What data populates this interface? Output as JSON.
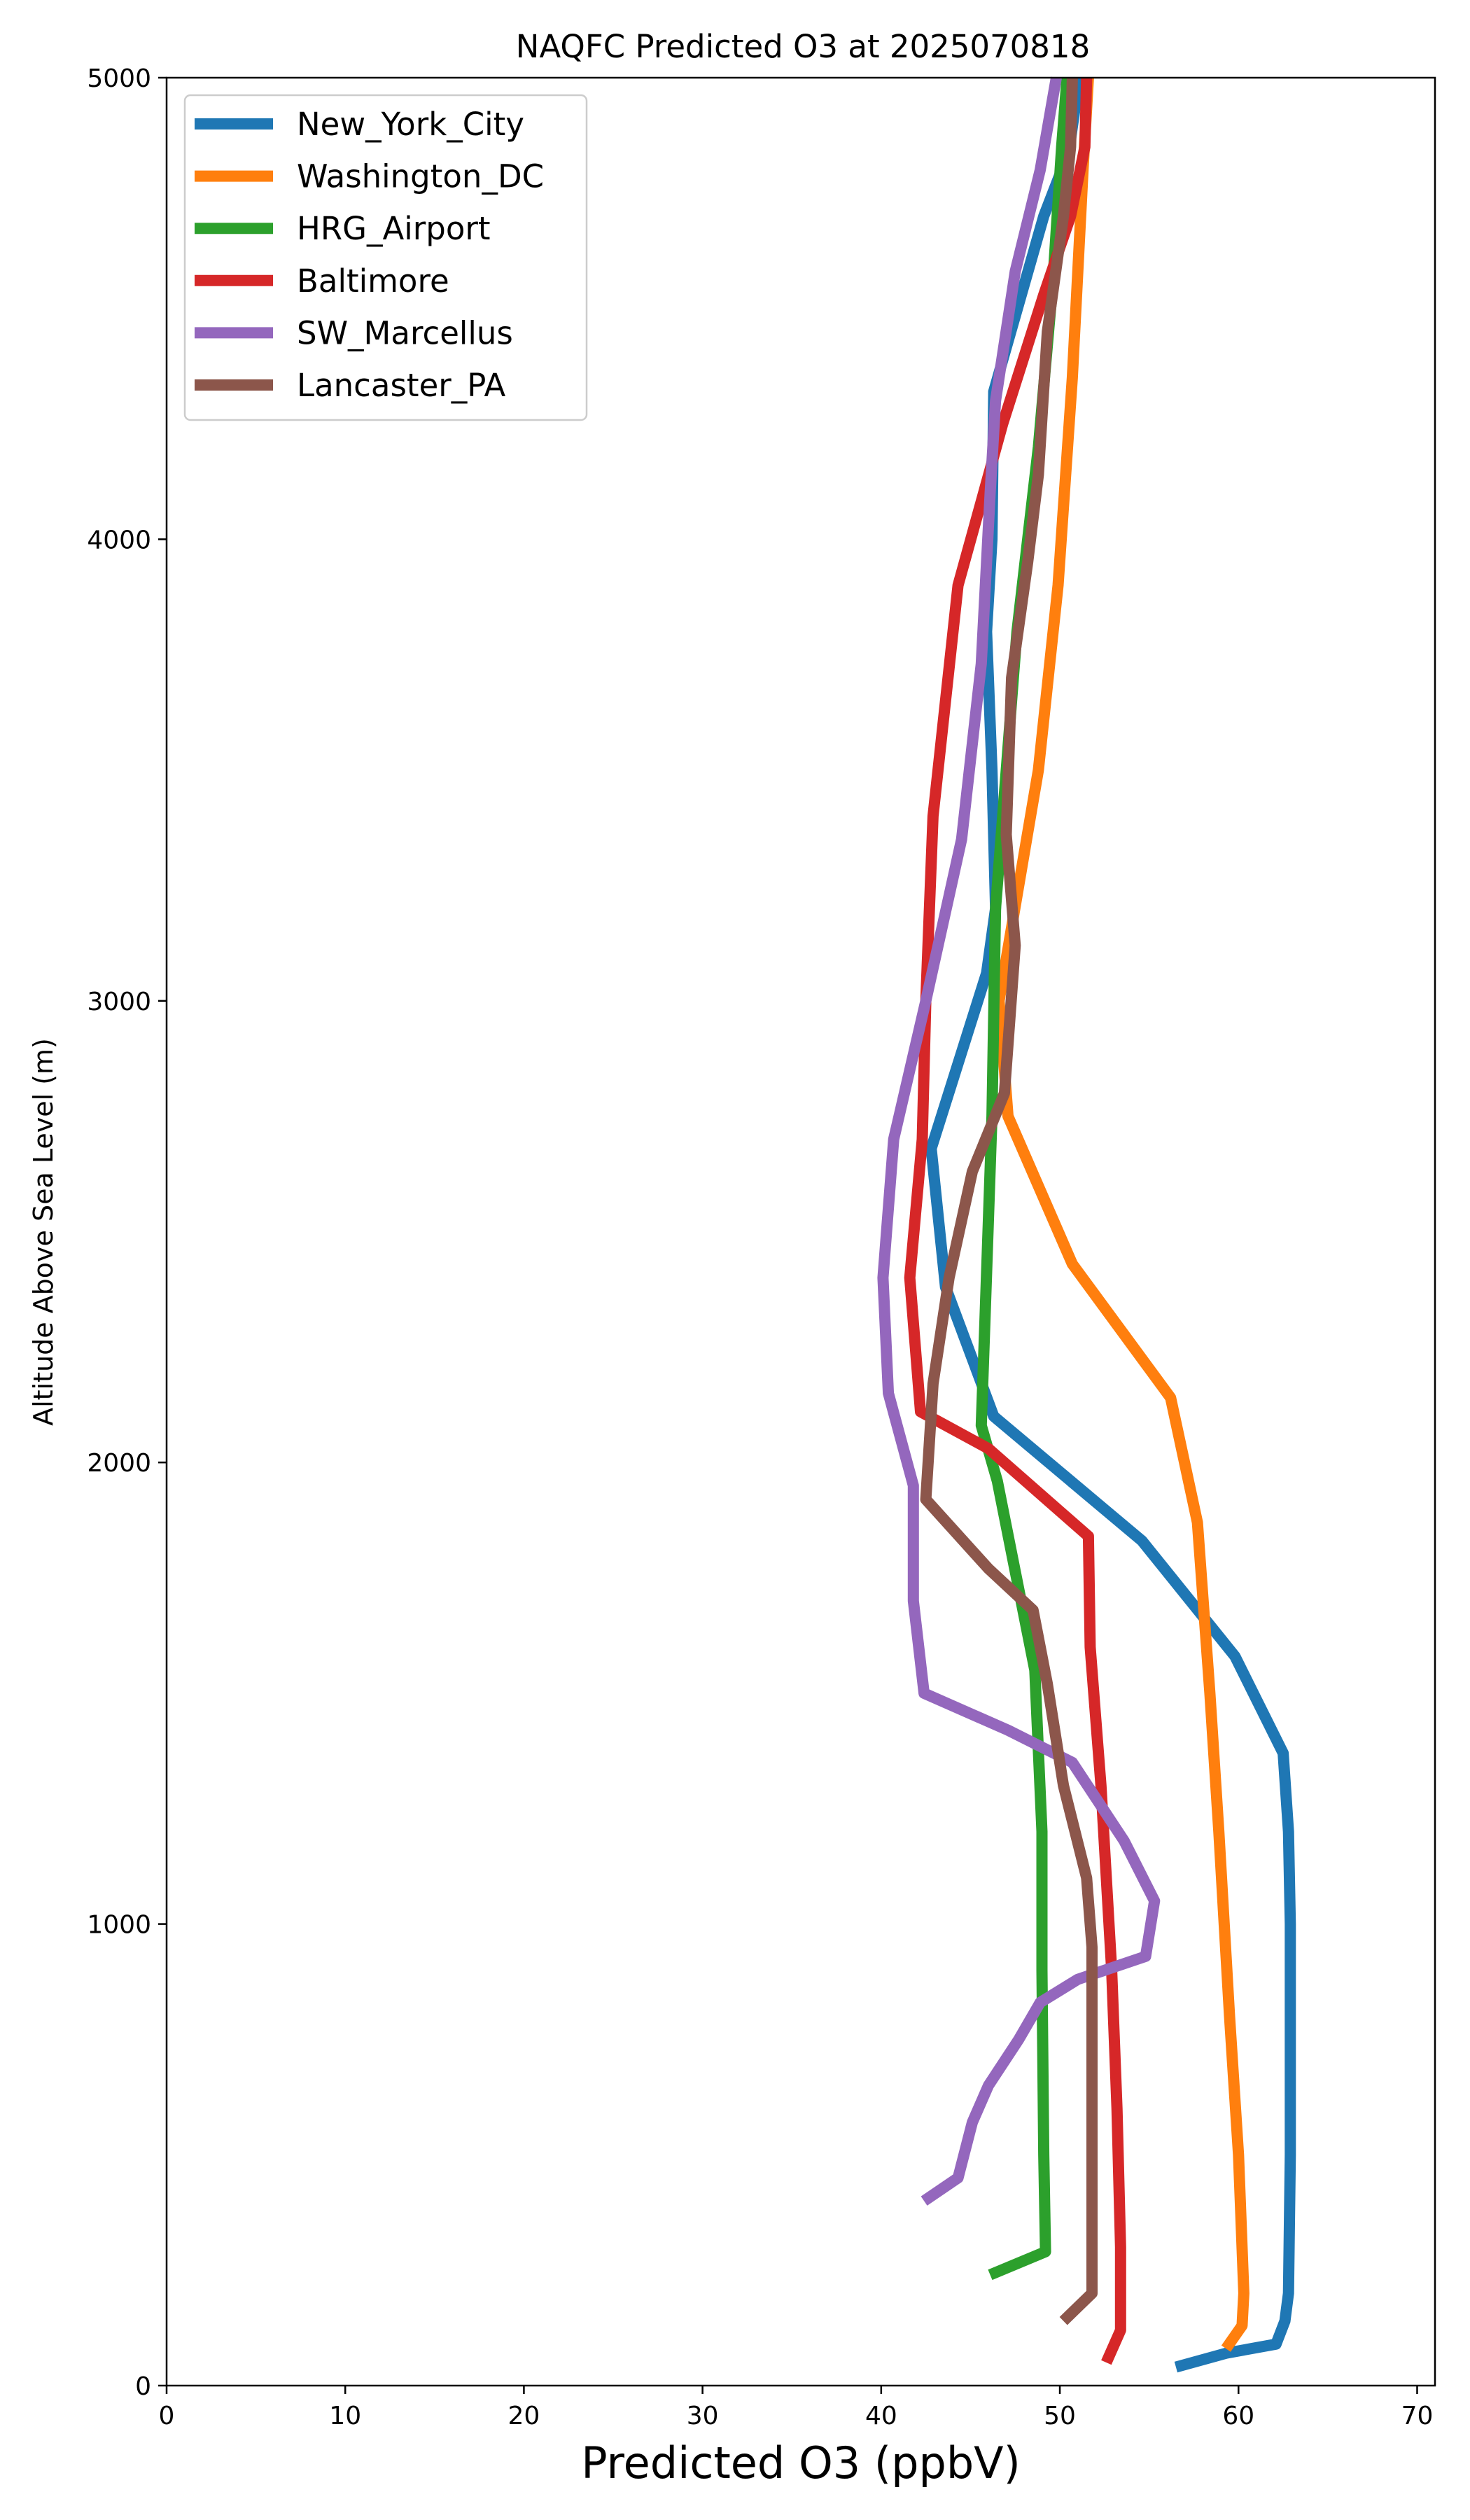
{
  "chart_data": {
    "type": "line",
    "title": "NAQFC Predicted O3 at 2025070818",
    "xlabel": "Predicted O3 (ppbV)",
    "ylabel": "Altitude Above Sea Level (m)",
    "xlim": [
      0,
      71
    ],
    "ylim": [
      0,
      5000
    ],
    "xticks": [
      0,
      10,
      20,
      30,
      40,
      50,
      60,
      70
    ],
    "yticks": [
      0,
      1000,
      2000,
      3000,
      4000,
      5000
    ],
    "xtick_labels": [
      "0",
      "10",
      "20",
      "30",
      "40",
      "50",
      "60",
      "70"
    ],
    "ytick_labels": [
      "0",
      "1000",
      "2000",
      "3000",
      "4000",
      "5000"
    ],
    "grid": false,
    "legend_position": "top-left",
    "series": [
      {
        "name": "New_York_City",
        "color": "#1f77b4",
        "points": [
          [
            56.5,
            40
          ],
          [
            59.3,
            70
          ],
          [
            62.1,
            90
          ],
          [
            62.6,
            140
          ],
          [
            62.8,
            200
          ],
          [
            62.9,
            500
          ],
          [
            62.9,
            1000
          ],
          [
            62.8,
            1200
          ],
          [
            62.5,
            1370
          ],
          [
            59.8,
            1580
          ],
          [
            54.6,
            1830
          ],
          [
            46.3,
            2100
          ],
          [
            43.6,
            2380
          ],
          [
            42.8,
            2680
          ],
          [
            45.9,
            3060
          ],
          [
            46.4,
            3200
          ],
          [
            46.2,
            3500
          ],
          [
            45.9,
            3800
          ],
          [
            46.2,
            4000
          ],
          [
            46.3,
            4320
          ],
          [
            49.1,
            4700
          ],
          [
            50.5,
            4840
          ],
          [
            51.1,
            5000
          ]
        ]
      },
      {
        "name": "Washington_DC",
        "color": "#ff7f0e",
        "points": [
          [
            59.3,
            80
          ],
          [
            60.2,
            130
          ],
          [
            60.3,
            200
          ],
          [
            60.0,
            500
          ],
          [
            59.5,
            800
          ],
          [
            58.9,
            1200
          ],
          [
            58.4,
            1500
          ],
          [
            57.7,
            1870
          ],
          [
            56.2,
            2140
          ],
          [
            50.7,
            2430
          ],
          [
            47.1,
            2750
          ],
          [
            46.6,
            3000
          ],
          [
            48.8,
            3500
          ],
          [
            49.9,
            3900
          ],
          [
            50.7,
            4350
          ],
          [
            51.3,
            4800
          ],
          [
            51.6,
            5000
          ]
        ]
      },
      {
        "name": "HRG_Airport",
        "color": "#2ca02c",
        "points": [
          [
            46.1,
            240
          ],
          [
            49.2,
            290
          ],
          [
            49.1,
            500
          ],
          [
            49.0,
            900
          ],
          [
            49.0,
            1200
          ],
          [
            48.6,
            1550
          ],
          [
            46.5,
            1960
          ],
          [
            45.6,
            2080
          ],
          [
            45.8,
            2300
          ],
          [
            46.2,
            2750
          ],
          [
            46.4,
            3200
          ],
          [
            47.6,
            3800
          ],
          [
            48.8,
            4200
          ],
          [
            49.6,
            4550
          ],
          [
            50.1,
            4850
          ],
          [
            50.4,
            5000
          ]
        ]
      },
      {
        "name": "Baltimore",
        "color": "#d62728",
        "points": [
          [
            52.6,
            50
          ],
          [
            53.4,
            120
          ],
          [
            53.4,
            300
          ],
          [
            53.2,
            600
          ],
          [
            52.9,
            900
          ],
          [
            52.3,
            1300
          ],
          [
            51.7,
            1600
          ],
          [
            51.6,
            1840
          ],
          [
            46.0,
            2030
          ],
          [
            42.2,
            2110
          ],
          [
            41.6,
            2400
          ],
          [
            42.3,
            2700
          ],
          [
            42.5,
            3000
          ],
          [
            42.9,
            3400
          ],
          [
            44.3,
            3900
          ],
          [
            46.8,
            4250
          ],
          [
            49.1,
            4530
          ],
          [
            50.6,
            4700
          ],
          [
            51.4,
            4850
          ],
          [
            51.5,
            5000
          ]
        ]
      },
      {
        "name": "SW_Marcellus",
        "color": "#9467bd",
        "points": [
          [
            42.4,
            400
          ],
          [
            44.3,
            450
          ],
          [
            45.1,
            570
          ],
          [
            46.0,
            650
          ],
          [
            47.7,
            750
          ],
          [
            48.9,
            830
          ],
          [
            51.0,
            880
          ],
          [
            54.8,
            930
          ],
          [
            55.3,
            1050
          ],
          [
            53.6,
            1180
          ],
          [
            50.7,
            1350
          ],
          [
            47.1,
            1420
          ],
          [
            42.4,
            1500
          ],
          [
            41.8,
            1700
          ],
          [
            41.8,
            1950
          ],
          [
            40.4,
            2150
          ],
          [
            40.1,
            2400
          ],
          [
            40.7,
            2700
          ],
          [
            42.5,
            3000
          ],
          [
            44.5,
            3350
          ],
          [
            45.6,
            3730
          ],
          [
            46.1,
            4100
          ],
          [
            46.4,
            4300
          ],
          [
            47.5,
            4580
          ],
          [
            48.9,
            4800
          ],
          [
            49.8,
            5000
          ]
        ]
      },
      {
        "name": "Lancaster_PA",
        "color": "#8c564b",
        "points": [
          [
            50.2,
            140
          ],
          [
            51.8,
            200
          ],
          [
            51.8,
            500
          ],
          [
            51.8,
            700
          ],
          [
            51.8,
            950
          ],
          [
            51.5,
            1100
          ],
          [
            50.2,
            1300
          ],
          [
            49.3,
            1520
          ],
          [
            48.5,
            1680
          ],
          [
            46.0,
            1770
          ],
          [
            42.5,
            1920
          ],
          [
            42.9,
            2170
          ],
          [
            43.8,
            2400
          ],
          [
            45.1,
            2630
          ],
          [
            46.9,
            2800
          ],
          [
            47.5,
            3120
          ],
          [
            47.0,
            3360
          ],
          [
            47.3,
            3700
          ],
          [
            48.2,
            3950
          ],
          [
            48.8,
            4140
          ],
          [
            49.3,
            4450
          ],
          [
            50.2,
            4700
          ],
          [
            50.6,
            4850
          ],
          [
            50.7,
            5000
          ]
        ]
      }
    ]
  }
}
